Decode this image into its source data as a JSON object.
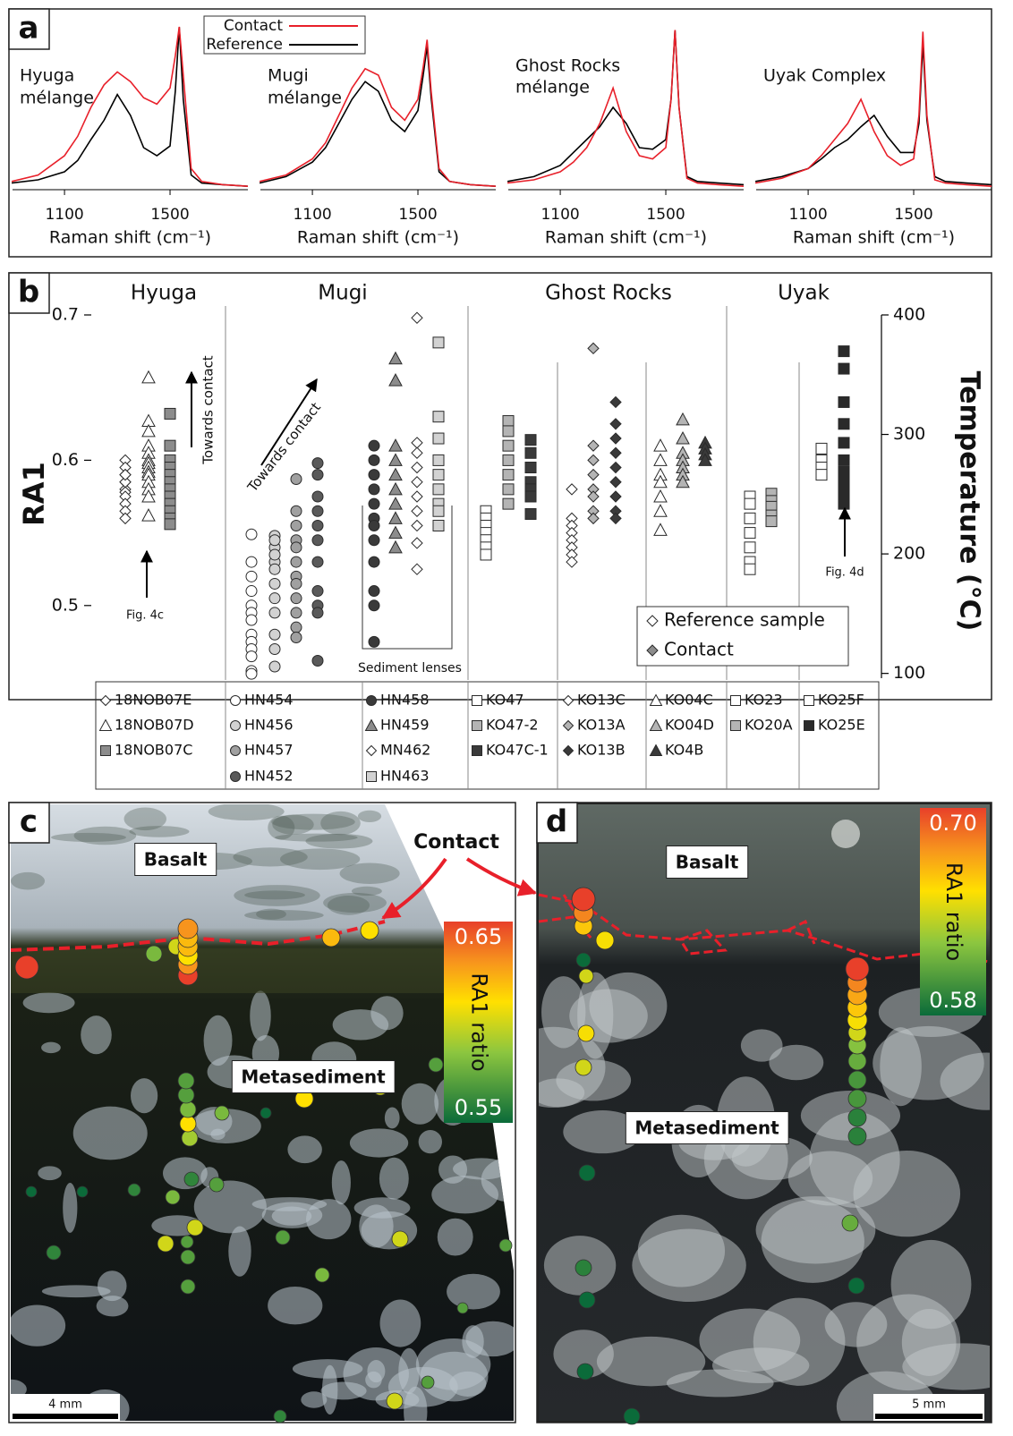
{
  "panel_labels": [
    "a",
    "b",
    "c",
    "d"
  ],
  "chart_data": [
    {
      "type": "line",
      "title": [
        "Hyuga",
        "mélange"
      ],
      "xlabel": "Raman shift (cm⁻¹)",
      "x": [
        900,
        1000,
        1100,
        1150,
        1200,
        1250,
        1300,
        1350,
        1400,
        1450,
        1500,
        1520,
        1535,
        1550,
        1580,
        1620,
        1700,
        1795
      ],
      "xlim": [
        903,
        1795
      ],
      "xticks": [
        1100,
        1500
      ],
      "ylim": [
        0,
        1
      ],
      "series": [
        {
          "name": "Contact",
          "color": "#e8202a",
          "values": [
            0.04,
            0.08,
            0.2,
            0.32,
            0.5,
            0.64,
            0.72,
            0.66,
            0.56,
            0.52,
            0.62,
            0.82,
            1.0,
            0.7,
            0.12,
            0.04,
            0.02,
            0.01
          ]
        },
        {
          "name": "Reference",
          "color": "#000000",
          "values": [
            0.03,
            0.05,
            0.1,
            0.17,
            0.3,
            0.42,
            0.58,
            0.45,
            0.25,
            0.2,
            0.26,
            0.6,
            1.0,
            0.55,
            0.08,
            0.03,
            0.02,
            0.01
          ]
        }
      ]
    },
    {
      "type": "line",
      "title": [
        "Mugi",
        "mélange"
      ],
      "xlabel": "Raman shift (cm⁻¹)",
      "x": [
        900,
        1000,
        1100,
        1150,
        1200,
        1250,
        1300,
        1350,
        1400,
        1450,
        1500,
        1520,
        1535,
        1550,
        1580,
        1620,
        1700,
        1795
      ],
      "xlim": [
        903,
        1795
      ],
      "xticks": [
        1100,
        1500
      ],
      "ylim": [
        0,
        1
      ],
      "series": [
        {
          "color": "#e8202a",
          "values": [
            0.04,
            0.08,
            0.18,
            0.28,
            0.45,
            0.62,
            0.74,
            0.7,
            0.5,
            0.42,
            0.55,
            0.75,
            0.92,
            0.6,
            0.12,
            0.04,
            0.02,
            0.01
          ]
        },
        {
          "color": "#000000",
          "values": [
            0.03,
            0.07,
            0.16,
            0.25,
            0.4,
            0.55,
            0.66,
            0.6,
            0.42,
            0.35,
            0.48,
            0.7,
            0.88,
            0.56,
            0.1,
            0.04,
            0.02,
            0.01
          ]
        }
      ]
    },
    {
      "type": "line",
      "title": [
        "Ghost Rocks",
        "mélange"
      ],
      "xlabel": "Raman shift (cm⁻¹)",
      "x": [
        900,
        1000,
        1100,
        1150,
        1200,
        1250,
        1300,
        1350,
        1400,
        1450,
        1500,
        1520,
        1535,
        1550,
        1580,
        1620,
        1700,
        1795
      ],
      "xlim": [
        903,
        1795
      ],
      "xticks": [
        1100,
        1500
      ],
      "ylim": [
        0,
        1
      ],
      "series": [
        {
          "color": "#e8202a",
          "values": [
            0.03,
            0.05,
            0.1,
            0.16,
            0.25,
            0.4,
            0.62,
            0.35,
            0.2,
            0.18,
            0.25,
            0.55,
            0.98,
            0.5,
            0.06,
            0.03,
            0.02,
            0.01
          ]
        },
        {
          "color": "#000000",
          "values": [
            0.04,
            0.07,
            0.14,
            0.22,
            0.3,
            0.38,
            0.5,
            0.4,
            0.25,
            0.24,
            0.3,
            0.55,
            0.98,
            0.5,
            0.07,
            0.04,
            0.03,
            0.02
          ]
        }
      ]
    },
    {
      "type": "line",
      "title": [
        "Uyak Complex"
      ],
      "xlabel": "Raman shift (cm⁻¹)",
      "x": [
        900,
        1000,
        1100,
        1150,
        1200,
        1250,
        1300,
        1350,
        1400,
        1450,
        1500,
        1520,
        1535,
        1550,
        1580,
        1620,
        1700,
        1795
      ],
      "xlim": [
        903,
        1795
      ],
      "xticks": [
        1100,
        1500
      ],
      "ylim": [
        0,
        1
      ],
      "series": [
        {
          "color": "#e8202a",
          "values": [
            0.03,
            0.06,
            0.12,
            0.2,
            0.3,
            0.4,
            0.55,
            0.35,
            0.2,
            0.14,
            0.18,
            0.45,
            0.97,
            0.45,
            0.05,
            0.03,
            0.02,
            0.01
          ]
        },
        {
          "color": "#000000",
          "values": [
            0.04,
            0.07,
            0.12,
            0.18,
            0.25,
            0.3,
            0.38,
            0.45,
            0.32,
            0.22,
            0.22,
            0.4,
            0.9,
            0.42,
            0.07,
            0.04,
            0.03,
            0.02
          ]
        }
      ]
    },
    {
      "type": "scatter",
      "groups": [
        "Hyuga",
        "Mugi",
        "Ghost Rocks",
        "Uyak"
      ],
      "ylabel": "RA1",
      "y2label": "Temperature (°C)",
      "ylim": [
        0.45,
        0.7
      ],
      "yticks": [
        0.5,
        0.6,
        0.7
      ],
      "y2lim": [
        96,
        400
      ],
      "y2ticks": [
        100,
        200,
        300,
        400
      ],
      "annotations": [
        "Towards contact",
        "Towards contact",
        "Fig. 4c",
        "Fig. 4d",
        "Sediment lenses"
      ],
      "marker_legend": [
        {
          "label": "Reference sample",
          "color": "#ffffff"
        },
        {
          "label": "Contact",
          "color": "#8c8c8c"
        }
      ],
      "series": [
        {
          "name": "18NOB07E",
          "marker": "diamond",
          "color": "#ffffff",
          "values": [
            0.6,
            0.595,
            0.59,
            0.585,
            0.58,
            0.578,
            0.575,
            0.57,
            0.565,
            0.56,
            0.585,
            0.59
          ]
        },
        {
          "name": "18NOB07D",
          "marker": "triangle",
          "color": "#ffffff",
          "values": [
            0.657,
            0.627,
            0.62,
            0.61,
            0.605,
            0.6,
            0.598,
            0.595,
            0.592,
            0.59,
            0.585,
            0.58,
            0.575,
            0.562
          ]
        },
        {
          "name": "18NOB07C",
          "marker": "square",
          "color": "#8c8c8c",
          "values": [
            0.632,
            0.61,
            0.6,
            0.595,
            0.59,
            0.585,
            0.58,
            0.575,
            0.57,
            0.565,
            0.56,
            0.556
          ]
        },
        {
          "name": "HN454",
          "marker": "circle",
          "color": "#ffffff",
          "values": [
            0.549,
            0.53,
            0.52,
            0.51,
            0.5,
            0.495,
            0.49,
            0.48,
            0.475,
            0.47,
            0.465,
            0.455,
            0.453
          ]
        },
        {
          "name": "HN456",
          "marker": "circle",
          "color": "#d2d2d2",
          "values": [
            0.548,
            0.54,
            0.53,
            0.525,
            0.515,
            0.505,
            0.495,
            0.48,
            0.47,
            0.458,
            0.545,
            0.535
          ]
        },
        {
          "name": "HN457",
          "marker": "circle",
          "color": "#a0a0a0",
          "values": [
            0.587,
            0.565,
            0.555,
            0.545,
            0.54,
            0.53,
            0.52,
            0.515,
            0.505,
            0.495,
            0.485,
            0.478
          ]
        },
        {
          "name": "HN452",
          "marker": "circle",
          "color": "#5a5a5a",
          "values": [
            0.598,
            0.59,
            0.575,
            0.565,
            0.555,
            0.545,
            0.53,
            0.51,
            0.5,
            0.495,
            0.462
          ]
        },
        {
          "name": "HN458",
          "marker": "circle",
          "color": "#3a3a3a",
          "values": [
            0.61,
            0.6,
            0.59,
            0.58,
            0.57,
            0.56,
            0.555,
            0.545,
            0.53,
            0.51,
            0.5,
            0.475
          ]
        },
        {
          "name": "HN459",
          "marker": "triangle",
          "color": "#8c8c8c",
          "values": [
            0.67,
            0.655,
            0.61,
            0.6,
            0.59,
            0.58,
            0.57,
            0.56,
            0.55,
            0.54
          ]
        },
        {
          "name": "MN462",
          "marker": "diamond",
          "color": "#ffffff",
          "values": [
            0.698,
            0.612,
            0.605,
            0.595,
            0.585,
            0.575,
            0.565,
            0.555,
            0.543,
            0.525
          ]
        },
        {
          "name": "HN463",
          "marker": "square",
          "color": "#d2d2d2",
          "values": [
            0.681,
            0.63,
            0.615,
            0.6,
            0.59,
            0.58,
            0.57,
            0.565,
            0.555
          ]
        },
        {
          "name": "KO47",
          "marker": "square",
          "color": "#ffffff",
          "values": [
            0.565,
            0.56,
            0.555,
            0.55,
            0.545,
            0.54,
            0.535
          ]
        },
        {
          "name": "KO47-2",
          "marker": "square",
          "color": "#b4b4b4",
          "values": [
            0.627,
            0.62,
            0.61,
            0.6,
            0.59,
            0.58,
            0.57
          ]
        },
        {
          "name": "KO47C-1",
          "marker": "square",
          "color": "#3a3a3a",
          "values": [
            0.614,
            0.605,
            0.595,
            0.585,
            0.58,
            0.575,
            0.563
          ]
        },
        {
          "name": "KO13C",
          "marker": "diamond",
          "color": "#ffffff",
          "values": [
            0.58,
            0.56,
            0.555,
            0.55,
            0.545,
            0.54,
            0.535,
            0.53
          ]
        },
        {
          "name": "KO13A",
          "marker": "diamond",
          "color": "#b4b4b4",
          "values": [
            0.677,
            0.61,
            0.6,
            0.59,
            0.58,
            0.575,
            0.565,
            0.56
          ]
        },
        {
          "name": "KO13B",
          "marker": "diamond",
          "color": "#3a3a3a",
          "values": [
            0.64,
            0.625,
            0.615,
            0.605,
            0.595,
            0.585,
            0.575,
            0.565,
            0.56
          ]
        },
        {
          "name": "KO04C",
          "marker": "triangle",
          "color": "#ffffff",
          "values": [
            0.61,
            0.6,
            0.59,
            0.585,
            0.575,
            0.565,
            0.552
          ]
        },
        {
          "name": "KO04D",
          "marker": "triangle",
          "color": "#b4b4b4",
          "values": [
            0.628,
            0.615,
            0.605,
            0.6,
            0.595,
            0.59,
            0.585
          ]
        },
        {
          "name": "KO4B",
          "marker": "triangle",
          "color": "#3a3a3a",
          "values": [
            0.612,
            0.608,
            0.604,
            0.6
          ]
        },
        {
          "name": "KO23",
          "marker": "square",
          "color": "#ffffff",
          "values": [
            0.575,
            0.57,
            0.56,
            0.55,
            0.54,
            0.53,
            0.525
          ]
        },
        {
          "name": "KO20A",
          "marker": "square",
          "color": "#b4b4b4",
          "values": [
            0.577,
            0.572,
            0.568,
            0.562,
            0.558
          ]
        },
        {
          "name": "KO25F",
          "marker": "square",
          "color": "#ffffff",
          "values": [
            0.608,
            0.6,
            0.595,
            0.59
          ]
        },
        {
          "name": "KO25E",
          "marker": "square",
          "color": "#2a2a2a",
          "values": [
            0.675,
            0.663,
            0.64,
            0.625,
            0.612,
            0.6,
            0.592,
            0.585,
            0.58,
            0.575,
            0.57
          ]
        }
      ]
    }
  ],
  "contact_label": "Contact",
  "photo_panels": [
    {
      "labels": [
        "Basalt",
        "Metasediment"
      ],
      "scale_bar": "4 mm",
      "colorbar": {
        "max": 0.65,
        "min": 0.55,
        "label": "RA1 ratio"
      },
      "values": [
        0.65,
        0.63,
        0.62,
        0.62,
        0.61,
        0.63,
        0.65,
        0.6,
        0.58,
        0.62,
        0.61,
        0.57,
        0.57,
        0.57,
        0.58,
        0.61,
        0.59,
        0.57,
        0.6,
        0.61,
        0.55,
        0.58,
        0.56,
        0.57,
        0.58,
        0.56,
        0.55,
        0.55,
        0.6,
        0.57,
        0.6,
        0.57,
        0.6,
        0.57,
        0.56,
        0.57,
        0.58,
        0.57,
        0.57,
        0.57,
        0.6,
        0.56
      ]
    },
    {
      "labels": [
        "Basalt",
        "Metasediment"
      ],
      "scale_bar": "5 mm",
      "colorbar": {
        "max": {
          "value": 0.7,
          "label": "0.70"
        },
        "min": 0.58,
        "label": "RA1 ratio"
      },
      "values": [
        0.7,
        0.68,
        0.66,
        0.65,
        0.58,
        0.64,
        0.65,
        0.64,
        0.58,
        0.59,
        0.58,
        0.58,
        0.58,
        0.7,
        0.68,
        0.67,
        0.66,
        0.65,
        0.64,
        0.62,
        0.61,
        0.6,
        0.6,
        0.59,
        0.59,
        0.61,
        0.58
      ]
    }
  ]
}
